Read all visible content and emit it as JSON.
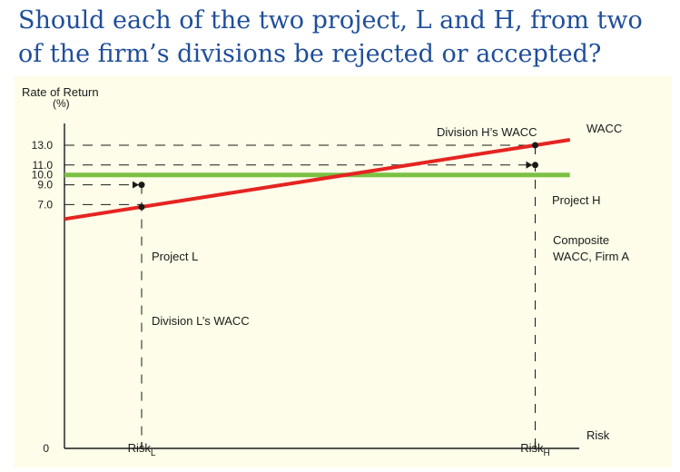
{
  "title": {
    "line1": "Should each of the two project, L and H, from two",
    "line2": "of the firm’s divisions be rejected or accepted?"
  },
  "chart_data": {
    "type": "line",
    "ylabel": "Rate of Return",
    "ylabel_unit": "(%)",
    "y_ticks": [
      {
        "value": 13.0,
        "label": "13.0"
      },
      {
        "value": 11.0,
        "label": "11.0"
      },
      {
        "value": 10.0,
        "label": "10.0"
      },
      {
        "value": 9.0,
        "label": "9.0"
      },
      {
        "value": 7.0,
        "label": "7.0"
      },
      {
        "value": 0,
        "label": "0"
      }
    ],
    "x_axis_label": "Risk",
    "x_markers": [
      {
        "id": "L",
        "label": "Risk",
        "subscript": "L",
        "risk": 1.0
      },
      {
        "id": "H",
        "label": "Risk",
        "subscript": "H",
        "risk": 6.1
      }
    ],
    "xlim": [
      0,
      7.2
    ],
    "risk_free_rate": 5.54,
    "series": [
      {
        "name": "WACC",
        "color": "#e52421",
        "points": [
          [
            0,
            5.54
          ],
          [
            6.1,
            13.0
          ],
          [
            6.55,
            13.55
          ]
        ]
      },
      {
        "name": "Composite WACC, Firm A",
        "color": "#7ac143",
        "value": 10.0
      }
    ],
    "points": [
      {
        "label": "Project L",
        "risk": 1.0,
        "rate": 9.0
      },
      {
        "label": "Division L’s WACC",
        "risk": 1.0,
        "rate": 6.76
      },
      {
        "label": "Project H",
        "risk": 6.1,
        "rate": 11.0
      },
      {
        "label": "Division H’s WACC",
        "risk": 6.1,
        "rate": 13.0
      }
    ],
    "annotations": {
      "wacc": "WACC",
      "composite_line1": "Composite",
      "composite_line2": "WACC, Firm A",
      "division_h": "Division H’s WACC",
      "division_l": "Division L’s WACC",
      "project_h": "Project H",
      "project_l": "Project L"
    },
    "colors": {
      "wacc_line": "#e52421",
      "composite_line": "#7ac143",
      "background": "#fdfde9",
      "title": "#1f4e9a"
    }
  }
}
